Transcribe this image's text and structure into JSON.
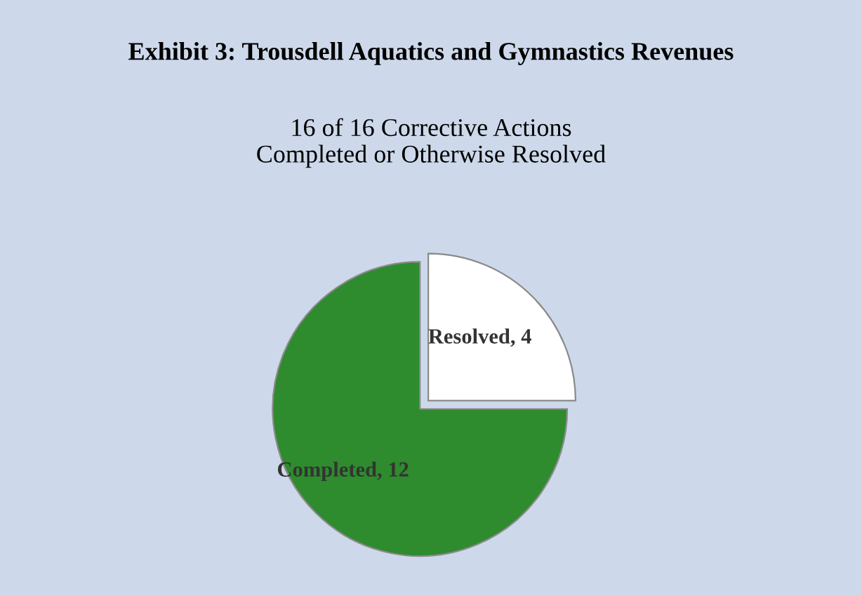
{
  "chart_data": {
    "type": "pie",
    "title": "Exhibit 3: Trousdell Aquatics and Gymnastics Revenues",
    "subtitle": "16 of 16 Corrective Actions\nCompleted or Otherwise Resolved",
    "categories": [
      "Completed",
      "Resolved"
    ],
    "values": [
      12,
      4
    ],
    "colors": [
      "#2e8b2e",
      "#ffffff"
    ],
    "value_labels": [
      ", 12",
      ", 4"
    ]
  }
}
